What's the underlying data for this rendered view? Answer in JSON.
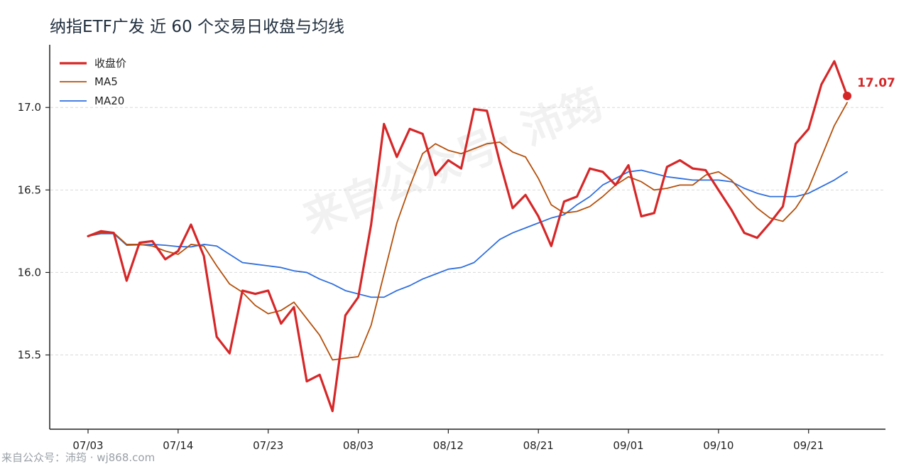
{
  "colors": {
    "close": "#d62728",
    "ma5": "#b5500b",
    "ma20": "#2f6fde",
    "grid": "#d9d9d9",
    "axis": "#222222"
  },
  "chart_data": {
    "type": "line",
    "title": "纳指ETF广发 近 60 个交易日收盘与均线",
    "ylim": [
      15.05,
      17.38
    ],
    "y_ticks": [
      15.5,
      16.0,
      16.5,
      17.0
    ],
    "y_tick_labels": [
      "15.5",
      "16.0",
      "16.5",
      "17.0"
    ],
    "x_tick_positions": [
      0,
      7,
      14,
      21,
      28,
      35,
      42,
      49,
      56
    ],
    "x_tick_labels": [
      "07/03",
      "07/14",
      "07/23",
      "08/03",
      "08/12",
      "08/21",
      "09/01",
      "09/10",
      "09/21"
    ],
    "grid": "horizontal dashed",
    "legend_position": "top-left",
    "series": [
      {
        "name": "收盘价",
        "color": "#d62728",
        "width": 3.2,
        "values": [
          16.22,
          16.25,
          16.24,
          15.95,
          16.18,
          16.19,
          16.08,
          16.13,
          16.29,
          16.1,
          15.61,
          15.51,
          15.89,
          15.87,
          15.89,
          15.69,
          15.79,
          15.34,
          15.38,
          15.16,
          15.74,
          15.85,
          16.29,
          16.9,
          16.7,
          16.87,
          16.84,
          16.59,
          16.68,
          16.63,
          16.99,
          16.98,
          16.67,
          16.39,
          16.47,
          16.34,
          16.16,
          16.43,
          16.46,
          16.63,
          16.61,
          16.53,
          16.65,
          16.34,
          16.36,
          16.64,
          16.68,
          16.63,
          16.62,
          16.5,
          16.38,
          16.24,
          16.21,
          16.3,
          16.4,
          16.78,
          16.87,
          17.14,
          17.28,
          17.07
        ]
      },
      {
        "name": "MA5",
        "color": "#b5500b",
        "width": 1.8,
        "values": [
          16.22,
          16.24,
          16.24,
          16.17,
          16.17,
          16.16,
          16.13,
          16.11,
          16.17,
          16.16,
          16.04,
          15.93,
          15.88,
          15.8,
          15.75,
          15.77,
          15.82,
          15.72,
          15.62,
          15.47,
          15.48,
          15.49,
          15.68,
          15.99,
          16.3,
          16.52,
          16.72,
          16.78,
          16.74,
          16.72,
          16.75,
          16.78,
          16.79,
          16.73,
          16.7,
          16.57,
          16.41,
          16.36,
          16.37,
          16.4,
          16.46,
          16.53,
          16.58,
          16.55,
          16.5,
          16.51,
          16.53,
          16.53,
          16.59,
          16.61,
          16.56,
          16.47,
          16.39,
          16.33,
          16.31,
          16.39,
          16.51,
          16.7,
          16.89,
          17.03
        ]
      },
      {
        "name": "MA20",
        "color": "#2f6fde",
        "width": 1.8,
        "values": [
          16.22,
          16.235,
          16.235,
          16.165,
          16.167,
          16.17,
          16.165,
          16.157,
          16.155,
          16.17,
          16.16,
          16.11,
          16.06,
          16.05,
          16.04,
          16.03,
          16.01,
          16.0,
          15.96,
          15.93,
          15.89,
          15.87,
          15.85,
          15.85,
          15.89,
          15.92,
          15.96,
          15.99,
          16.02,
          16.03,
          16.06,
          16.13,
          16.2,
          16.24,
          16.27,
          16.3,
          16.33,
          16.35,
          16.41,
          16.46,
          16.53,
          16.57,
          16.61,
          16.62,
          16.6,
          16.58,
          16.57,
          16.56,
          16.56,
          16.56,
          16.55,
          16.51,
          16.48,
          16.46,
          16.46,
          16.46,
          16.48,
          16.52,
          16.56,
          16.61
        ]
      }
    ],
    "last_value_label": "17.07"
  },
  "watermark": "来自公众号· 沛筠",
  "footer": "来自公众号：沛筠 · wj868.com"
}
